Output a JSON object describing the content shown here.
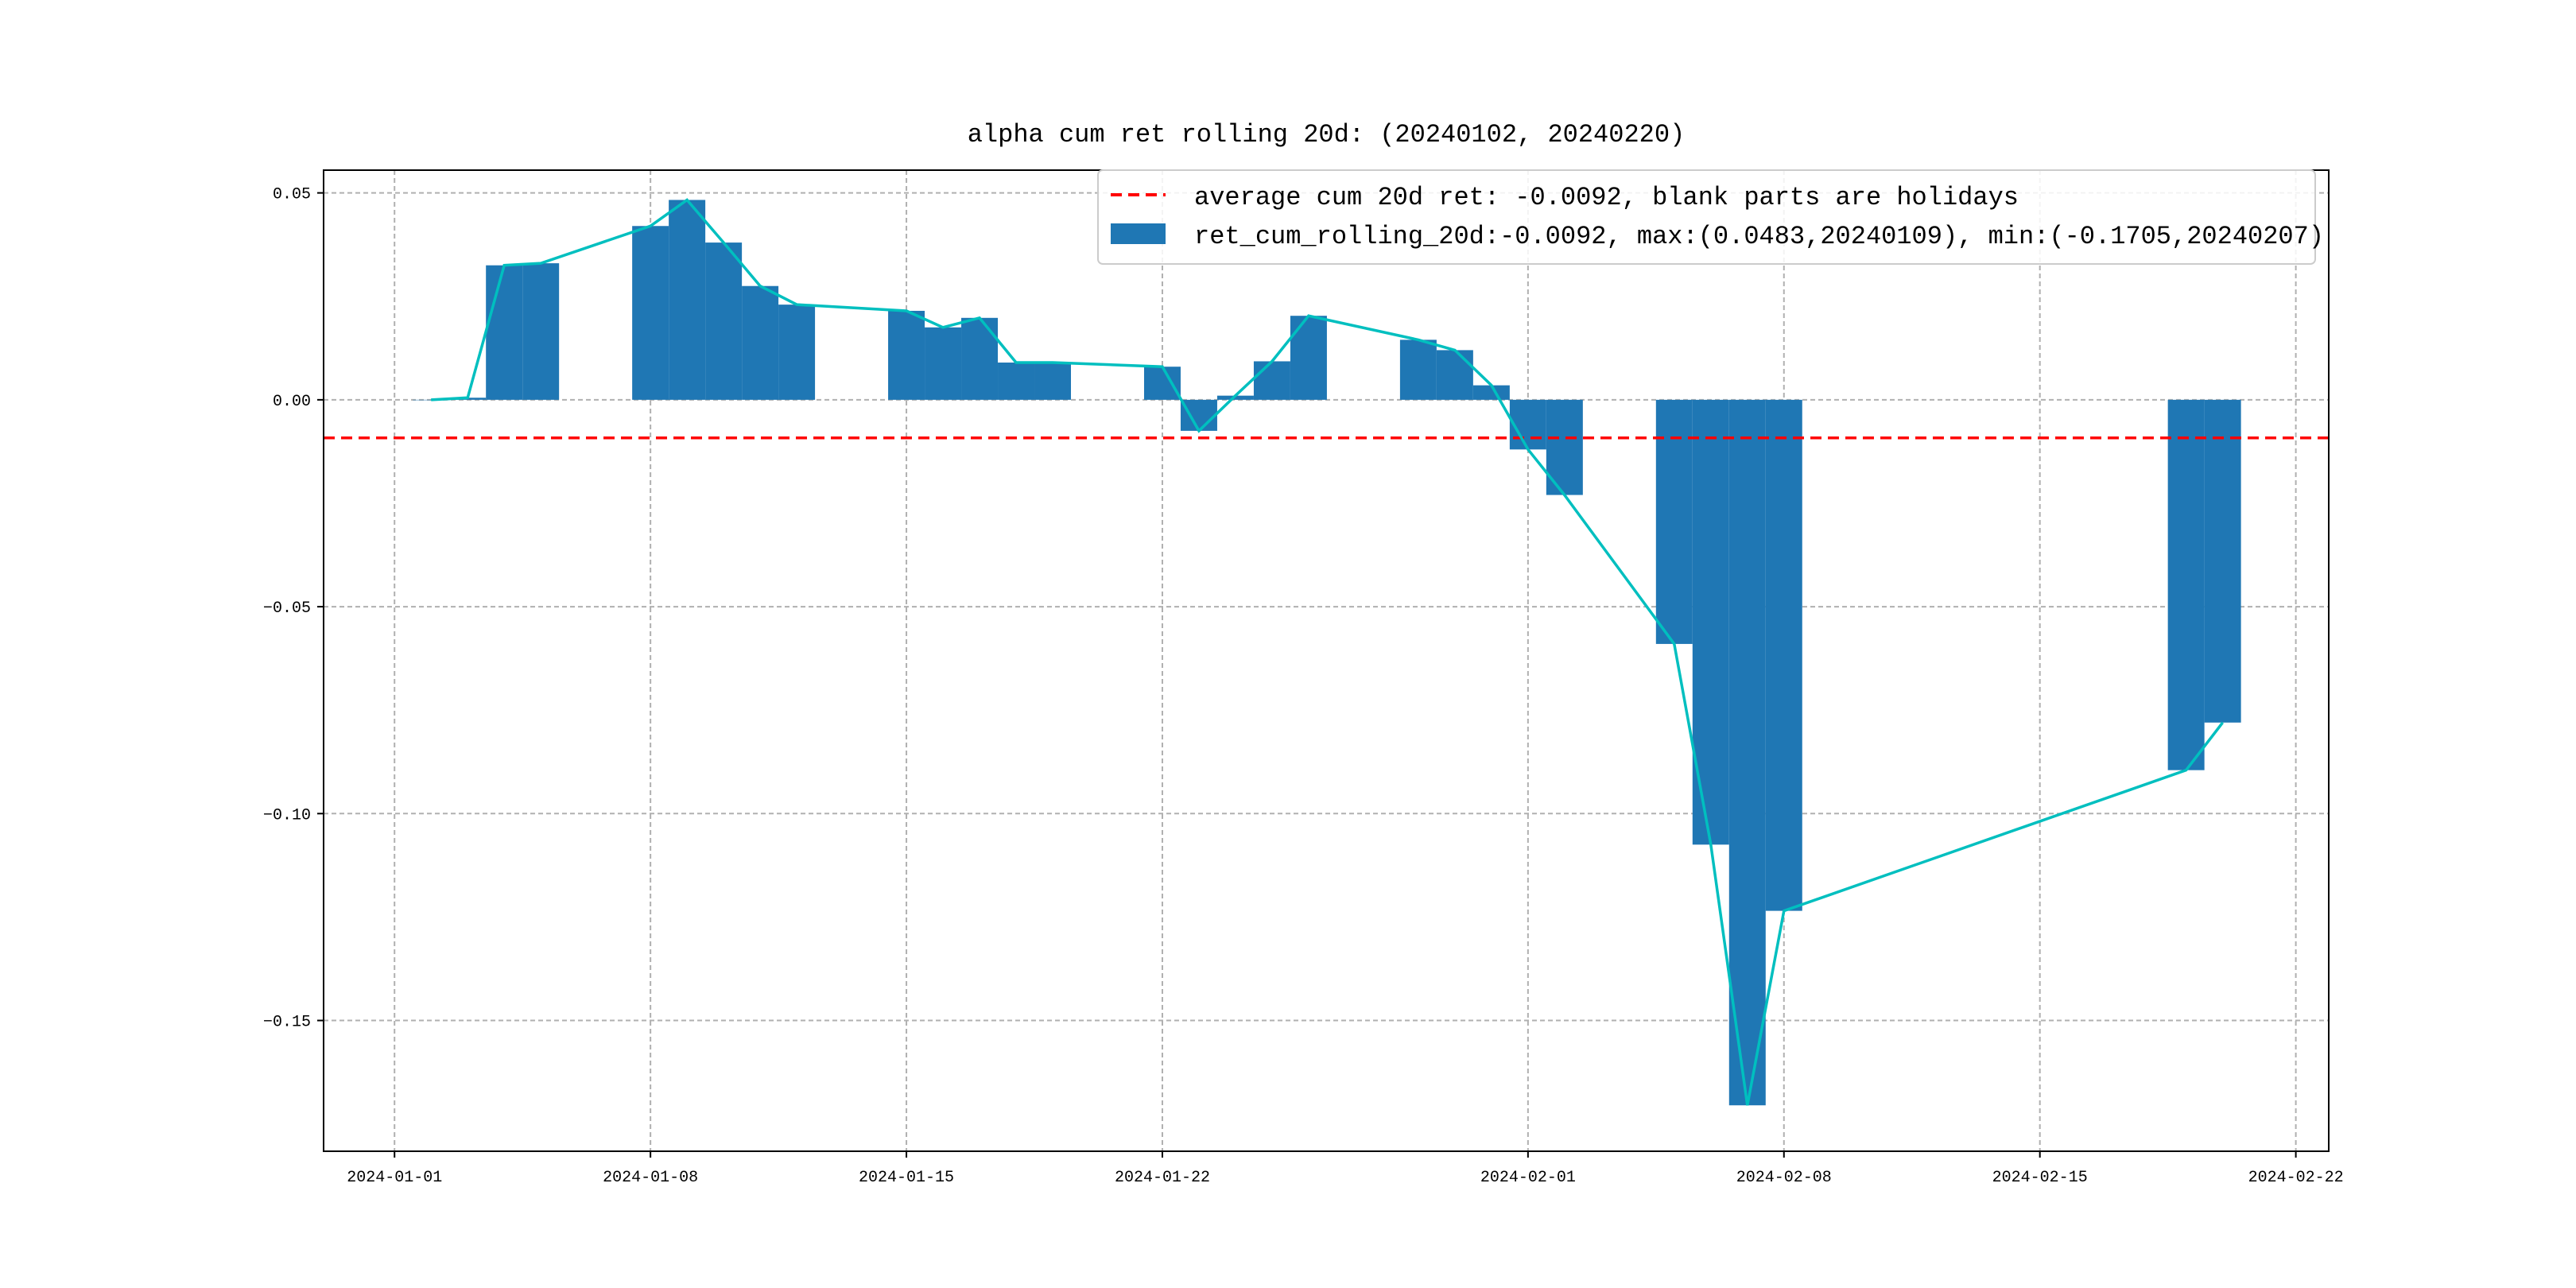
{
  "chart_data": {
    "type": "bar",
    "title": "alpha cum ret rolling 20d: (20240102, 20240220)",
    "xlabel": "",
    "ylabel": "",
    "xlim": [
      "2023-12-30",
      "2024-02-22"
    ],
    "ylim": [
      -0.1816,
      0.0555
    ],
    "grid": true,
    "legend_placement": "top-right",
    "x_ticks": [
      "2024-01-01",
      "2024-01-08",
      "2024-01-15",
      "2024-01-22",
      "2024-02-01",
      "2024-02-08",
      "2024-02-15",
      "2024-02-22"
    ],
    "y_ticks": [
      0.05,
      0.0,
      -0.05,
      -0.1,
      -0.15
    ],
    "y_tick_labels": [
      "0.05",
      "0.00",
      "−0.05",
      "−0.10",
      "−0.15"
    ],
    "average_line": {
      "value": -0.0092,
      "color": "#ff0000",
      "label": "average cum 20d ret: -0.0092, blank parts are holidays"
    },
    "series": [
      {
        "name": "ret_cum_rolling_20d:-0.0092, max:(0.0483,20240109), min:(-0.1705,20240207)",
        "kind": "bar",
        "color": "#1f77b4",
        "line_color": "#00bfbf",
        "dates": [
          "2024-01-02",
          "2024-01-03",
          "2024-01-04",
          "2024-01-05",
          "2024-01-08",
          "2024-01-09",
          "2024-01-10",
          "2024-01-11",
          "2024-01-12",
          "2024-01-15",
          "2024-01-16",
          "2024-01-17",
          "2024-01-18",
          "2024-01-19",
          "2024-01-22",
          "2024-01-23",
          "2024-01-24",
          "2024-01-25",
          "2024-01-26",
          "2024-01-29",
          "2024-01-30",
          "2024-01-31",
          "2024-02-01",
          "2024-02-02",
          "2024-02-05",
          "2024-02-06",
          "2024-02-07",
          "2024-02-08",
          "2024-02-19",
          "2024-02-20"
        ],
        "values": [
          0.0,
          0.0005,
          0.0325,
          0.033,
          0.042,
          0.0483,
          0.038,
          0.0275,
          0.023,
          0.0215,
          0.0175,
          0.0198,
          0.009,
          0.009,
          0.008,
          -0.0075,
          0.001,
          0.0093,
          0.0203,
          0.0145,
          0.012,
          0.0035,
          -0.012,
          -0.023,
          -0.059,
          -0.1075,
          -0.1705,
          -0.1235,
          -0.0895,
          -0.078
        ]
      }
    ]
  }
}
